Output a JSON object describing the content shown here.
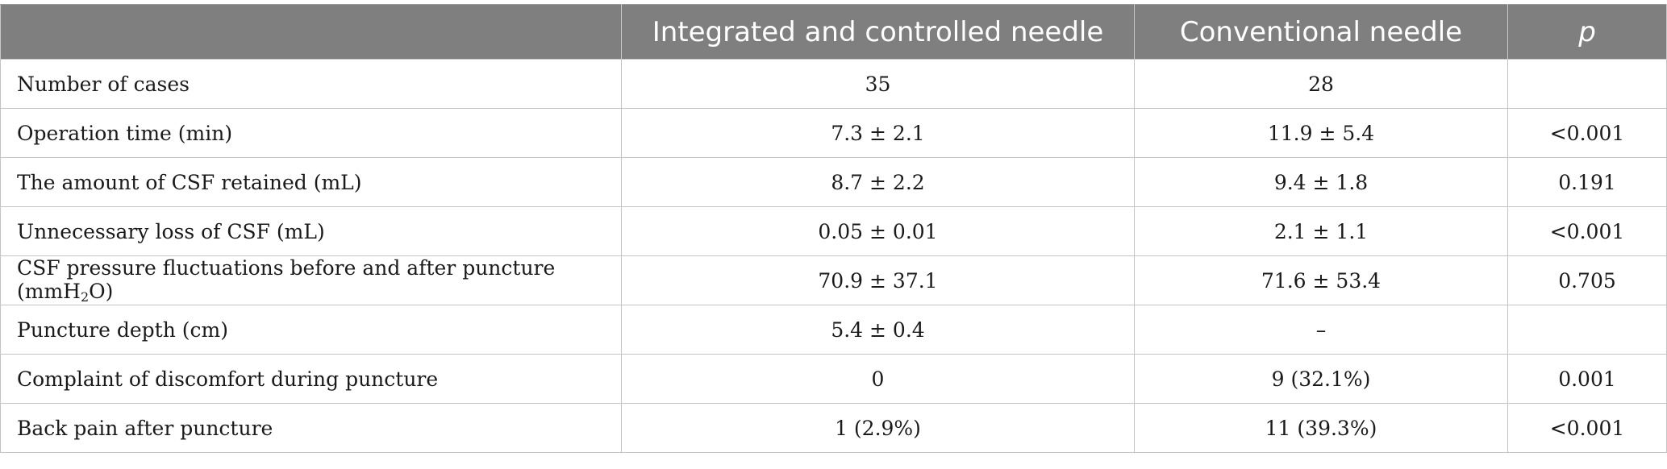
{
  "table": {
    "headers": [
      "",
      "Integrated and controlled needle",
      "Conventional needle",
      "p"
    ],
    "rows": [
      {
        "label": "Number of cases",
        "integrated": "35",
        "conventional": "28",
        "p": ""
      },
      {
        "label": "Operation time (min)",
        "integrated": "7.3 ± 2.1",
        "conventional": "11.9 ± 5.4",
        "p": "<0.001"
      },
      {
        "label": "The amount of CSF retained (mL)",
        "integrated": "8.7 ± 2.2",
        "conventional": "9.4 ± 1.8",
        "p": "0.191"
      },
      {
        "label": "Unnecessary loss of CSF (mL)",
        "integrated": "0.05 ± 0.01",
        "conventional": "2.1 ± 1.1",
        "p": "<0.001"
      },
      {
        "label_pre": "CSF pressure fluctuations before and after puncture (mmH",
        "label_sub": "2",
        "label_post": "O)",
        "integrated": "70.9 ± 37.1",
        "conventional": "71.6 ± 53.4",
        "p": "0.705"
      },
      {
        "label": "Puncture depth (cm)",
        "integrated": "5.4 ± 0.4",
        "conventional": "–",
        "p": ""
      },
      {
        "label": "Complaint of discomfort during puncture",
        "integrated": "0",
        "conventional": "9 (32.1%)",
        "p": "0.001"
      },
      {
        "label": "Back pain after puncture",
        "integrated": "1 (2.9%)",
        "conventional": "11 (39.3%)",
        "p": "<0.001"
      }
    ]
  },
  "colors": {
    "header_bg": "#7f7f7f",
    "header_text": "#ffffff",
    "grid": "#c4c4c4"
  }
}
